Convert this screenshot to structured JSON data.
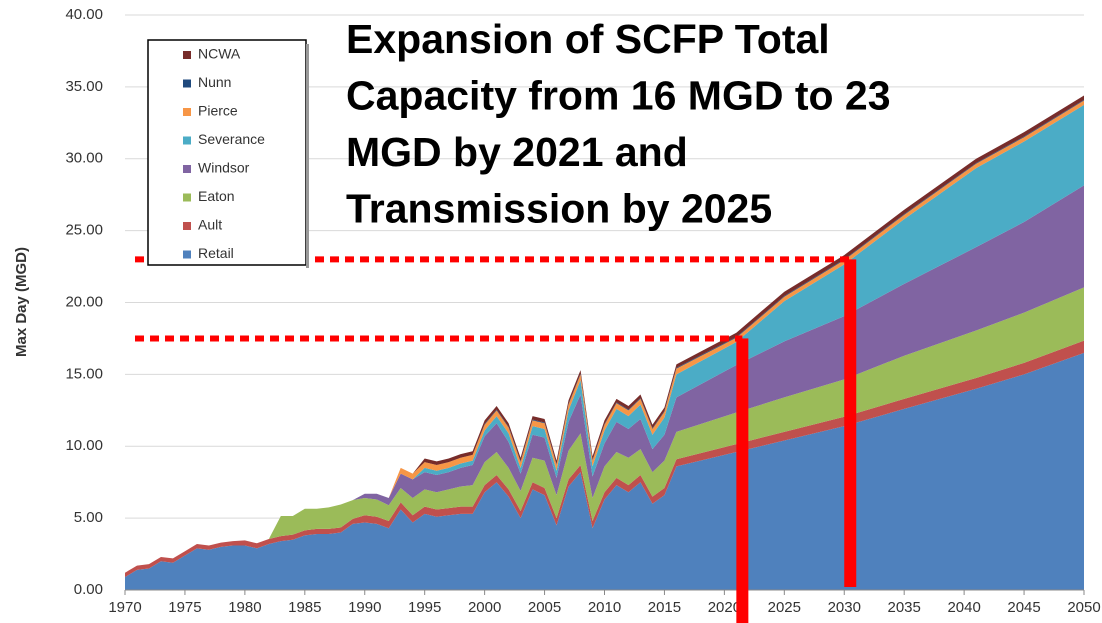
{
  "chart_data": {
    "type": "stacked_area",
    "title": [
      "Expansion of SCFP Total",
      "Capacity from 16 MGD to 23",
      "MGD by 2021 and",
      "Transmission by 2025"
    ],
    "y_label": "Max Day (MGD)",
    "x": [
      1970,
      1971,
      1972,
      1973,
      1974,
      1975,
      1976,
      1977,
      1978,
      1979,
      1980,
      1981,
      1982,
      1983,
      1984,
      1985,
      1986,
      1987,
      1988,
      1989,
      1990,
      1991,
      1992,
      1993,
      1994,
      1995,
      1996,
      1997,
      1998,
      1999,
      2000,
      2001,
      2002,
      2003,
      2004,
      2005,
      2006,
      2007,
      2008,
      2009,
      2010,
      2011,
      2012,
      2013,
      2014,
      2015,
      2016,
      2021,
      2025,
      2030,
      2035,
      2041,
      2045,
      2050
    ],
    "series": [
      {
        "name": "Retail",
        "color": "#4f81bd",
        "values": [
          0.9,
          1.4,
          1.5,
          2.0,
          1.9,
          2.4,
          2.9,
          2.8,
          3.0,
          3.1,
          3.1,
          2.9,
          3.2,
          3.4,
          3.5,
          3.8,
          3.9,
          3.9,
          4.0,
          4.6,
          4.7,
          4.6,
          4.3,
          5.6,
          4.7,
          5.3,
          5.1,
          5.2,
          5.3,
          5.3,
          6.8,
          7.5,
          6.5,
          5.0,
          7.0,
          6.6,
          4.5,
          7.2,
          8.2,
          4.3,
          6.3,
          7.3,
          6.8,
          7.5,
          6.0,
          6.6,
          8.6,
          9.6,
          10.4,
          11.4,
          12.6,
          14.0,
          15.0,
          16.5
        ]
      },
      {
        "name": "Ault",
        "color": "#c0504d",
        "values": [
          0.3,
          0.3,
          0.3,
          0.3,
          0.3,
          0.3,
          0.3,
          0.3,
          0.3,
          0.3,
          0.35,
          0.35,
          0.35,
          0.35,
          0.35,
          0.35,
          0.35,
          0.35,
          0.35,
          0.35,
          0.5,
          0.5,
          0.5,
          0.5,
          0.5,
          0.5,
          0.5,
          0.5,
          0.5,
          0.5,
          0.5,
          0.5,
          0.5,
          0.5,
          0.5,
          0.5,
          0.5,
          0.5,
          0.5,
          0.5,
          0.5,
          0.5,
          0.5,
          0.5,
          0.5,
          0.5,
          0.5,
          0.55,
          0.6,
          0.65,
          0.7,
          0.75,
          0.8,
          0.85
        ]
      },
      {
        "name": "Eaton",
        "color": "#9bbb59",
        "values": [
          0,
          0,
          0,
          0,
          0,
          0,
          0,
          0,
          0,
          0,
          0,
          0,
          0,
          1.4,
          1.3,
          1.5,
          1.4,
          1.5,
          1.6,
          1.3,
          1.2,
          1.2,
          1.1,
          1.0,
          1.2,
          1.2,
          1.2,
          1.3,
          1.4,
          1.5,
          1.6,
          1.6,
          1.5,
          1.4,
          1.7,
          1.9,
          1.6,
          2.0,
          2.2,
          1.6,
          1.8,
          1.8,
          1.9,
          1.8,
          1.7,
          1.9,
          1.9,
          2.2,
          2.4,
          2.6,
          3.0,
          3.3,
          3.5,
          3.7
        ]
      },
      {
        "name": "Windsor",
        "color": "#8064a2",
        "values": [
          0,
          0,
          0,
          0,
          0,
          0,
          0,
          0,
          0,
          0,
          0,
          0,
          0,
          0,
          0,
          0,
          0,
          0,
          0,
          0,
          0.3,
          0.4,
          0.5,
          1.0,
          1.3,
          1.2,
          1.2,
          1.2,
          1.3,
          1.4,
          1.8,
          2.0,
          1.8,
          1.2,
          1.6,
          1.6,
          1.2,
          2.0,
          2.7,
          1.5,
          1.6,
          2.1,
          2.0,
          2.1,
          1.6,
          1.8,
          2.4,
          3.3,
          3.9,
          4.4,
          5.0,
          5.8,
          6.3,
          7.1
        ]
      },
      {
        "name": "Severance",
        "color": "#4bacc6",
        "values": [
          0,
          0,
          0,
          0,
          0,
          0,
          0,
          0,
          0,
          0,
          0,
          0,
          0,
          0,
          0,
          0,
          0,
          0,
          0,
          0,
          0,
          0,
          0,
          0,
          0,
          0.3,
          0.3,
          0.3,
          0.3,
          0.3,
          0.4,
          0.5,
          0.6,
          0.4,
          0.6,
          0.6,
          0.5,
          0.8,
          1.0,
          0.7,
          0.9,
          0.9,
          0.9,
          1.0,
          1.0,
          1.2,
          1.6,
          1.6,
          2.8,
          3.6,
          4.5,
          5.5,
          5.6,
          5.6
        ]
      },
      {
        "name": "Pierce",
        "color": "#f79646",
        "values": [
          0,
          0,
          0,
          0,
          0,
          0,
          0,
          0,
          0,
          0,
          0,
          0,
          0,
          0,
          0,
          0,
          0,
          0,
          0,
          0,
          0,
          0,
          0,
          0.4,
          0.4,
          0.4,
          0.4,
          0.4,
          0.4,
          0.4,
          0.4,
          0.4,
          0.4,
          0.4,
          0.4,
          0.4,
          0.4,
          0.4,
          0.4,
          0.4,
          0.4,
          0.4,
          0.4,
          0.4,
          0.4,
          0.4,
          0.4,
          0.3,
          0.3,
          0.3,
          0.3,
          0.3,
          0.3,
          0.3
        ]
      },
      {
        "name": "Nunn",
        "color": "#1f497d",
        "values": [
          0,
          0,
          0,
          0,
          0,
          0,
          0,
          0,
          0,
          0,
          0,
          0,
          0,
          0,
          0,
          0,
          0,
          0,
          0,
          0,
          0,
          0,
          0,
          0,
          0,
          0,
          0,
          0,
          0,
          0,
          0.05,
          0.05,
          0.05,
          0.05,
          0.05,
          0.05,
          0.05,
          0.05,
          0.05,
          0.05,
          0.05,
          0.05,
          0.05,
          0.05,
          0.05,
          0.05,
          0.05,
          0.05,
          0.05,
          0.05,
          0.05,
          0.05,
          0.05,
          0.05
        ]
      },
      {
        "name": "NCWA",
        "color": "#772c2a",
        "values": [
          0,
          0,
          0,
          0,
          0,
          0,
          0,
          0,
          0,
          0,
          0,
          0,
          0,
          0,
          0,
          0,
          0,
          0,
          0,
          0,
          0,
          0,
          0,
          0,
          0,
          0.25,
          0.25,
          0.25,
          0.25,
          0.25,
          0.25,
          0.25,
          0.25,
          0.25,
          0.25,
          0.25,
          0.25,
          0.25,
          0.25,
          0.25,
          0.25,
          0.25,
          0.25,
          0.25,
          0.25,
          0.25,
          0.25,
          0.3,
          0.3,
          0.3,
          0.3,
          0.3,
          0.3,
          0.3
        ]
      }
    ],
    "xlim": [
      1970,
      2050
    ],
    "xticks": [
      1970,
      1975,
      1980,
      1985,
      1990,
      1995,
      2000,
      2005,
      2010,
      2015,
      2020,
      2025,
      2030,
      2035,
      2040,
      2045,
      2050
    ],
    "ylim": [
      0,
      40
    ],
    "yticks": [
      {
        "value": 0,
        "label": "0.00"
      },
      {
        "value": 5,
        "label": "5.00"
      },
      {
        "value": 10,
        "label": "10.00"
      },
      {
        "value": 15,
        "label": "15.00"
      },
      {
        "value": 20,
        "label": "20.00"
      },
      {
        "value": 25,
        "label": "25.00"
      },
      {
        "value": 30,
        "label": "30.00"
      },
      {
        "value": 35,
        "label": "35.00"
      },
      {
        "value": 40,
        "label": "40.00"
      }
    ],
    "grid": true,
    "reference_lines": [
      {
        "y": 23,
        "x": 2030.5,
        "color": "#ff0000"
      },
      {
        "y": 17.5,
        "x": 2021.5,
        "color": "#ff0000"
      }
    ]
  }
}
